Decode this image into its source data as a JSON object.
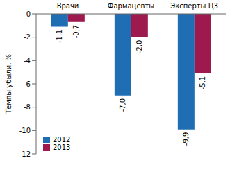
{
  "chart_data": {
    "type": "bar",
    "categories": [
      "Врачи",
      "Фармацевты",
      "Эксперты ЦЗ"
    ],
    "series": [
      {
        "name": "2012",
        "color": "#1f6db3",
        "values": [
          -1.1,
          -7.0,
          -9.9
        ],
        "value_labels": [
          "-1,1",
          "-7,0",
          "-9,9"
        ]
      },
      {
        "name": "2013",
        "color": "#9e1a4e",
        "values": [
          -0.7,
          -2.0,
          -5.1
        ],
        "value_labels": [
          "-0,7",
          "-2,0",
          "-5,1"
        ]
      }
    ],
    "y_label": "Темпы убыли, %",
    "ylim": [
      -12,
      0
    ],
    "yticks": [
      0,
      -2,
      -4,
      -6,
      -8,
      -10,
      -12
    ],
    "grid": false,
    "legend": "lower left",
    "data_labels": true
  }
}
